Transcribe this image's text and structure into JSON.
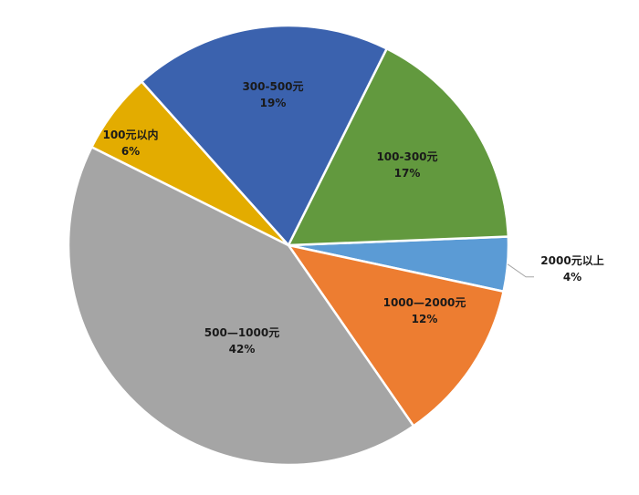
{
  "chart_data": {
    "type": "pie",
    "title": "",
    "legend": "none",
    "slices": [
      {
        "label": "2000元以上",
        "value": 4,
        "value_label": "4%",
        "color": "#5B9BD5"
      },
      {
        "label": "1000—2000元",
        "value": 12,
        "value_label": "12%",
        "color": "#ED7D31"
      },
      {
        "label": "500—1000元",
        "value": 42,
        "value_label": "42%",
        "color": "#A5A5A5"
      },
      {
        "label": "100元以内",
        "value": 6,
        "value_label": "6%",
        "color": "#E3AC00"
      },
      {
        "label": "300-500元",
        "value": 19,
        "value_label": "19%",
        "color": "#3B62AE"
      },
      {
        "label": "100-300元",
        "value": 17,
        "value_label": "17%",
        "color": "#62993E"
      }
    ]
  }
}
